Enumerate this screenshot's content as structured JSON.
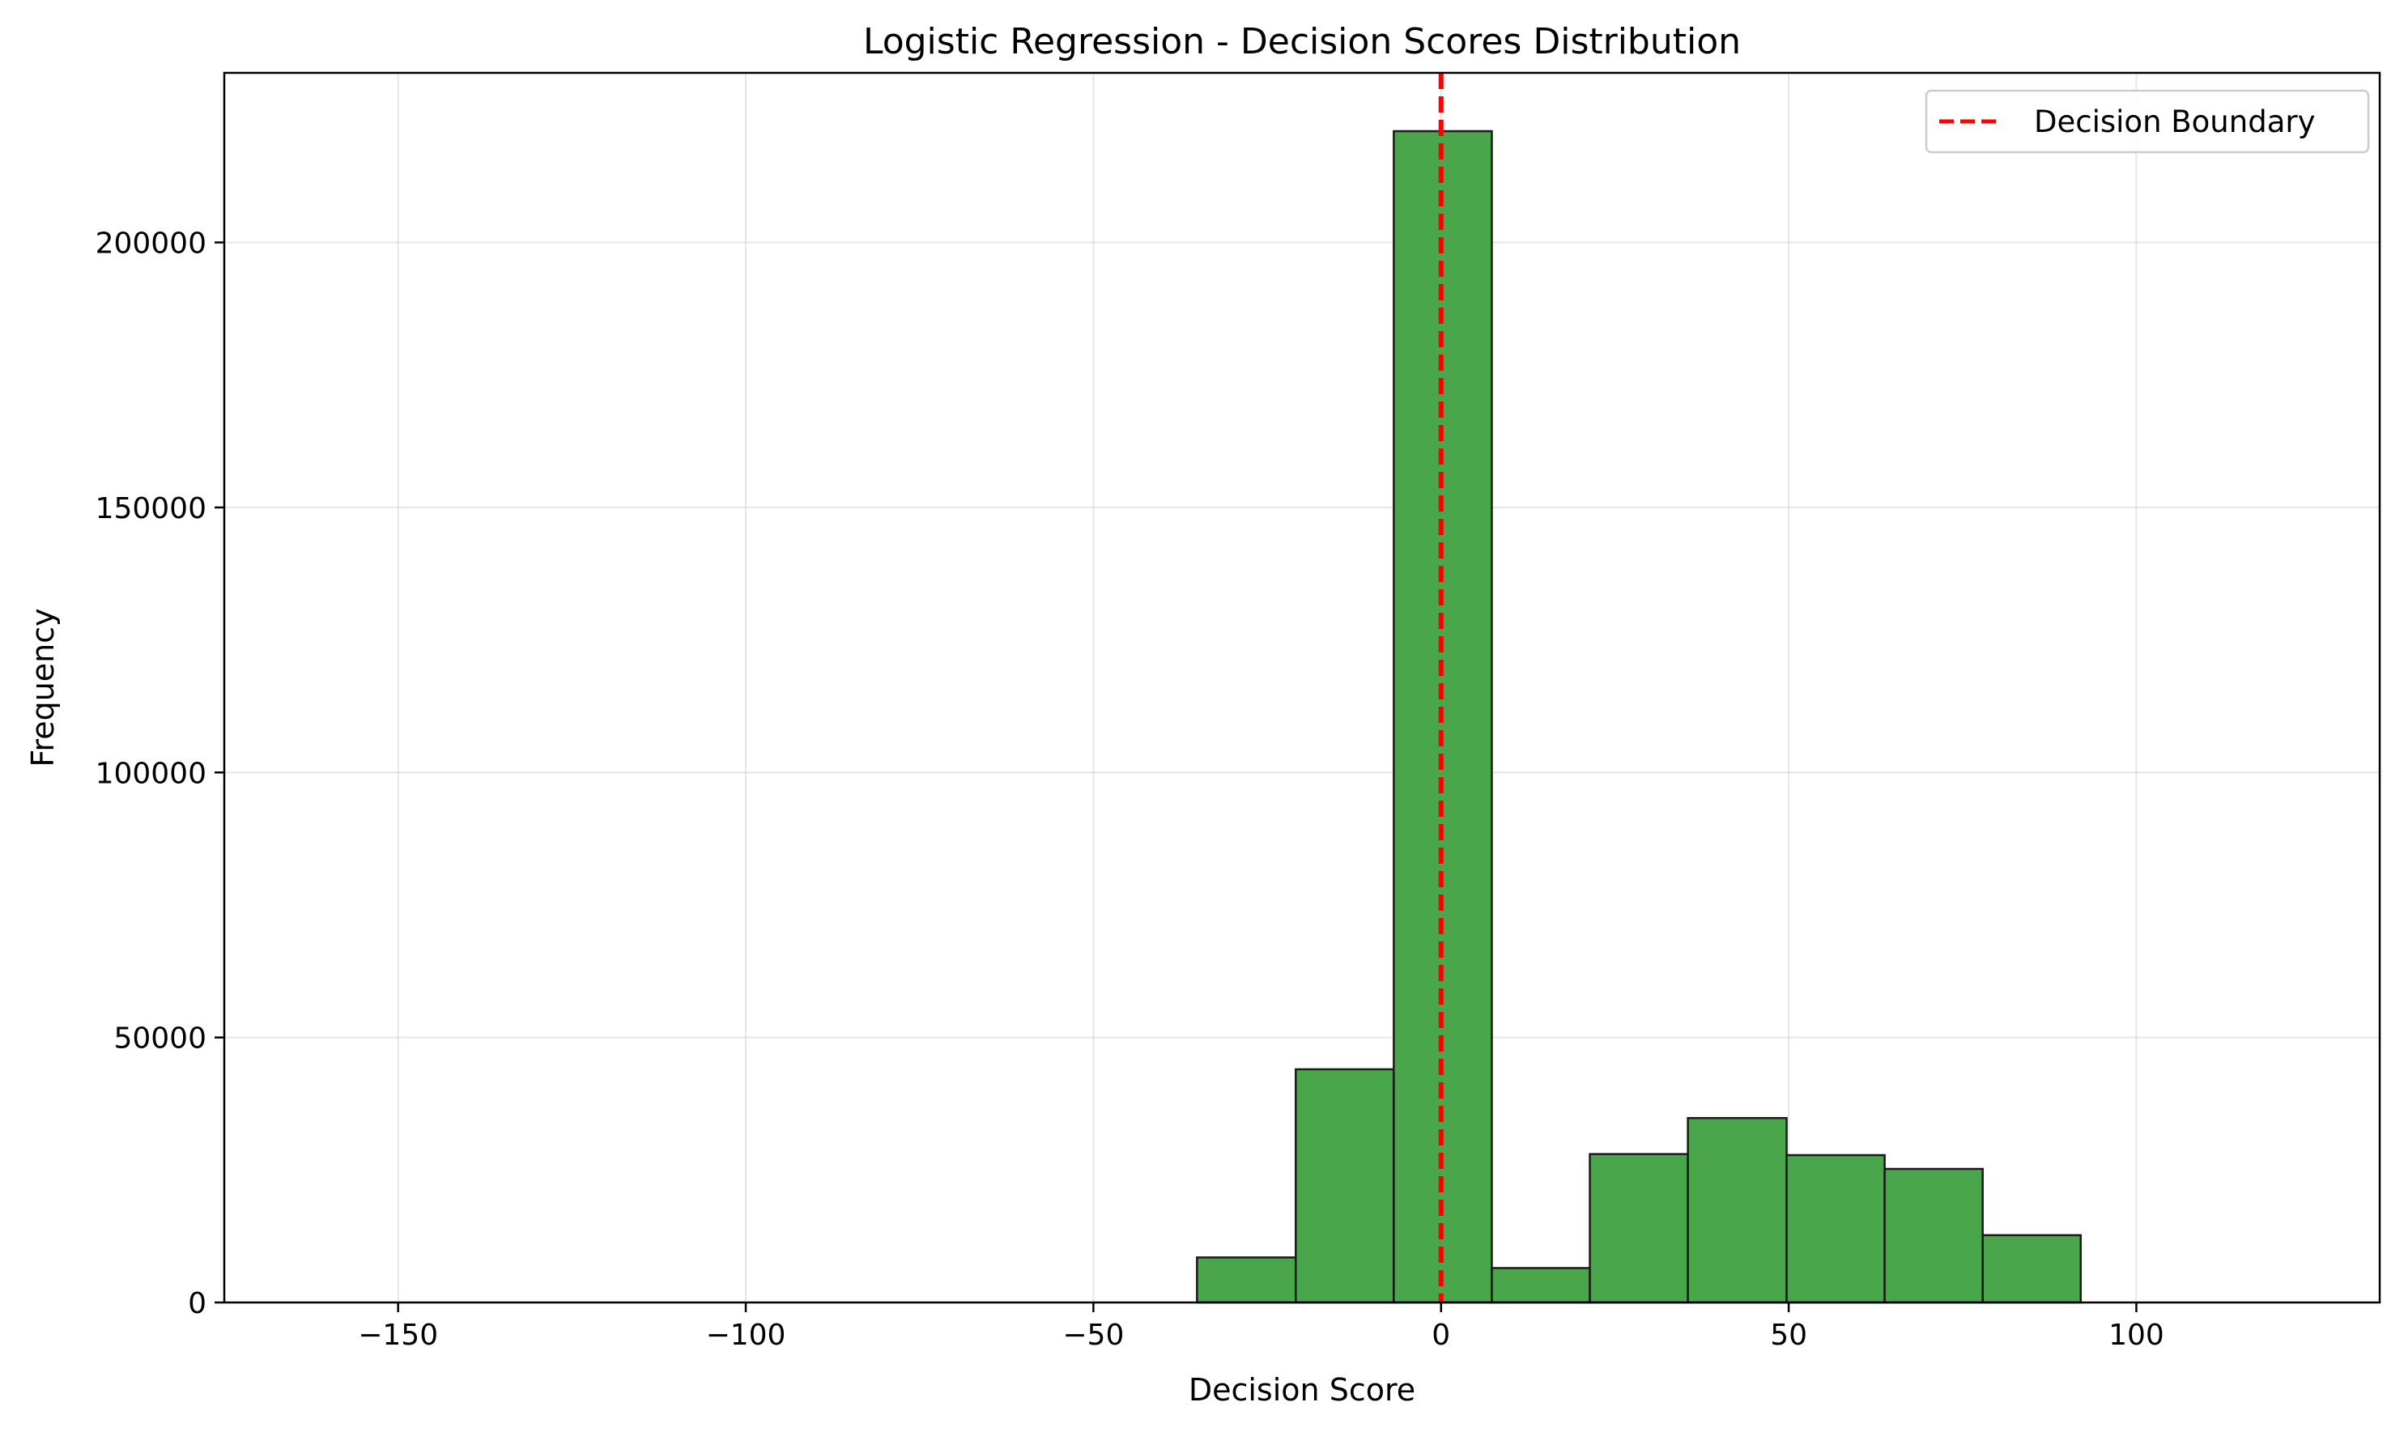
{
  "chart_data": {
    "type": "bar",
    "title": "Logistic Regression - Decision Scores Distribution",
    "xlabel": "Decision Score",
    "ylabel": "Frequency",
    "xlim": [
      -175,
      135
    ],
    "ylim": [
      0,
      232000
    ],
    "grid": true,
    "legend_position": "top-right",
    "x_ticks": [
      -150,
      -100,
      -50,
      0,
      50,
      100
    ],
    "x_tick_labels": [
      "−150",
      "−100",
      "−50",
      "0",
      "50",
      "100"
    ],
    "y_ticks": [
      0,
      50000,
      100000,
      150000,
      200000
    ],
    "y_tick_labels": [
      "0",
      "50000",
      "100000",
      "150000",
      "200000"
    ],
    "bar_color": "#4aa64a",
    "bar_edge_color": "#1a1a1a",
    "bins": [
      {
        "start": -162.1,
        "end": -148.0,
        "value": 0
      },
      {
        "start": -148.0,
        "end": -133.9,
        "value": 0
      },
      {
        "start": -133.9,
        "end": -119.8,
        "value": 0
      },
      {
        "start": -119.8,
        "end": -105.7,
        "value": 0
      },
      {
        "start": -105.7,
        "end": -91.5,
        "value": 0
      },
      {
        "start": -91.5,
        "end": -77.4,
        "value": 0
      },
      {
        "start": -77.4,
        "end": -63.3,
        "value": 0
      },
      {
        "start": -63.3,
        "end": -49.2,
        "value": 0
      },
      {
        "start": -49.2,
        "end": -35.1,
        "value": 0
      },
      {
        "start": -35.1,
        "end": -20.9,
        "value": 8500
      },
      {
        "start": -20.9,
        "end": -6.8,
        "value": 44000
      },
      {
        "start": -6.8,
        "end": 7.3,
        "value": 221000
      },
      {
        "start": 7.3,
        "end": 21.4,
        "value": 6500
      },
      {
        "start": 21.4,
        "end": 35.5,
        "value": 28000
      },
      {
        "start": 35.5,
        "end": 49.7,
        "value": 34800
      },
      {
        "start": 49.7,
        "end": 63.8,
        "value": 27800
      },
      {
        "start": 63.8,
        "end": 77.9,
        "value": 25200
      },
      {
        "start": 77.9,
        "end": 92.0,
        "value": 12700
      },
      {
        "start": 92.0,
        "end": 106.1,
        "value": 0
      },
      {
        "start": 106.1,
        "end": 120.2,
        "value": 0
      }
    ],
    "decision_boundary": {
      "x": 0,
      "color": "#ff0000",
      "label": "Decision Boundary"
    }
  }
}
